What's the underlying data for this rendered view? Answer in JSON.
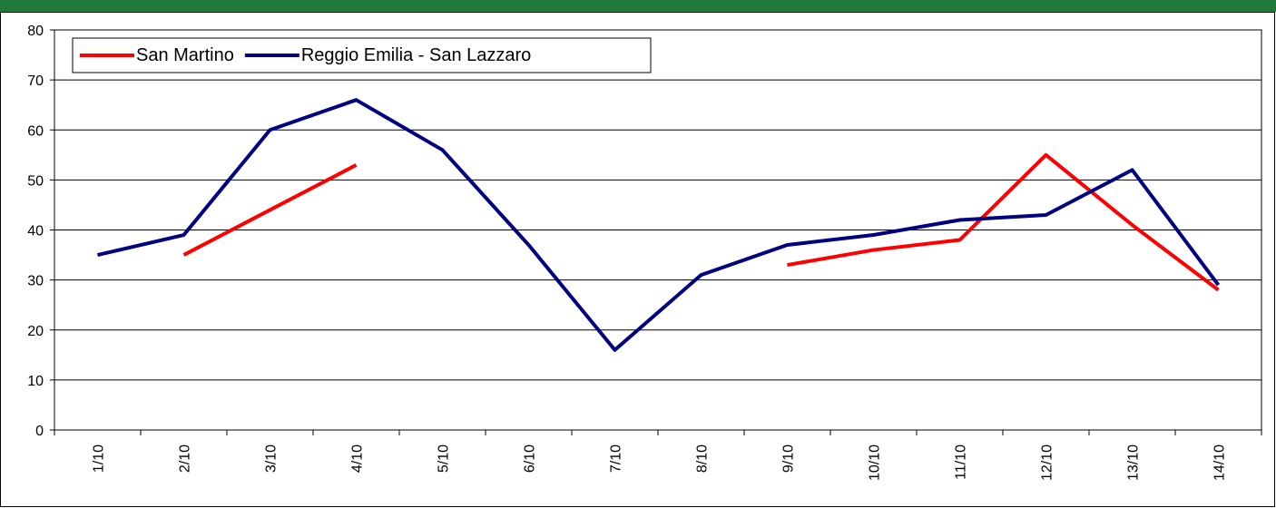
{
  "chart_data": {
    "type": "line",
    "categories": [
      "1/10",
      "2/10",
      "3/10",
      "4/10",
      "5/10",
      "6/10",
      "7/10",
      "8/10",
      "9/10",
      "10/10",
      "11/10",
      "12/10",
      "13/10",
      "14/10"
    ],
    "series": [
      {
        "name": "San Martino",
        "color": "#ff0000",
        "values": [
          null,
          35,
          44,
          53,
          null,
          null,
          null,
          null,
          33,
          36,
          38,
          55,
          41,
          28
        ]
      },
      {
        "name": "Reggio Emilia - San Lazzaro",
        "color": "#000080",
        "values": [
          35,
          39,
          60,
          66,
          56,
          37,
          16,
          31,
          37,
          39,
          42,
          43,
          52,
          29
        ]
      }
    ],
    "ylim": [
      0,
      80
    ],
    "yticks": [
      0,
      10,
      20,
      30,
      40,
      50,
      60,
      70,
      80
    ],
    "grid": true,
    "legend": "top-left"
  }
}
